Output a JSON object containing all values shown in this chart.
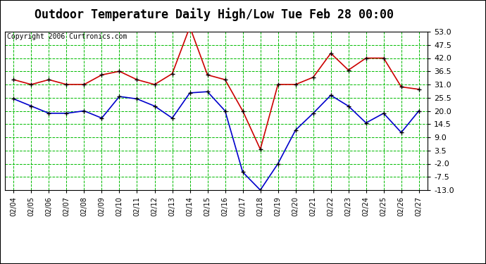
{
  "title": "Outdoor Temperature Daily High/Low Tue Feb 28 00:00",
  "copyright": "Copyright 2006 Curtronics.com",
  "dates": [
    "02/04",
    "02/05",
    "02/06",
    "02/07",
    "02/08",
    "02/09",
    "02/10",
    "02/11",
    "02/12",
    "02/13",
    "02/14",
    "02/15",
    "02/16",
    "02/17",
    "02/18",
    "02/19",
    "02/20",
    "02/21",
    "02/22",
    "02/23",
    "02/24",
    "02/25",
    "02/26",
    "02/27"
  ],
  "high": [
    33.0,
    31.0,
    33.0,
    31.0,
    31.0,
    35.0,
    36.5,
    33.0,
    31.0,
    35.5,
    55.0,
    35.0,
    33.0,
    20.0,
    4.0,
    31.0,
    31.0,
    34.0,
    44.0,
    37.0,
    42.0,
    42.0,
    30.0,
    29.0
  ],
  "low": [
    25.0,
    22.0,
    19.0,
    19.0,
    20.0,
    17.0,
    26.0,
    25.0,
    22.0,
    17.0,
    27.5,
    28.0,
    20.0,
    -5.5,
    -13.0,
    -2.0,
    12.0,
    19.0,
    26.5,
    22.0,
    15.0,
    19.0,
    11.0,
    20.0
  ],
  "high_color": "#cc0000",
  "low_color": "#0000cc",
  "marker_color": "#000000",
  "bg_color": "#ffffff",
  "grid_color": "#00bb00",
  "title_color": "#000000",
  "copyright_color": "#000000",
  "ylim": [
    -13.0,
    53.0
  ],
  "yticks": [
    -13.0,
    -7.5,
    -2.0,
    3.5,
    9.0,
    14.5,
    20.0,
    25.5,
    31.0,
    36.5,
    42.0,
    47.5,
    53.0
  ],
  "title_fontsize": 12,
  "copyright_fontsize": 7,
  "tick_fontsize": 8,
  "xtick_fontsize": 7
}
